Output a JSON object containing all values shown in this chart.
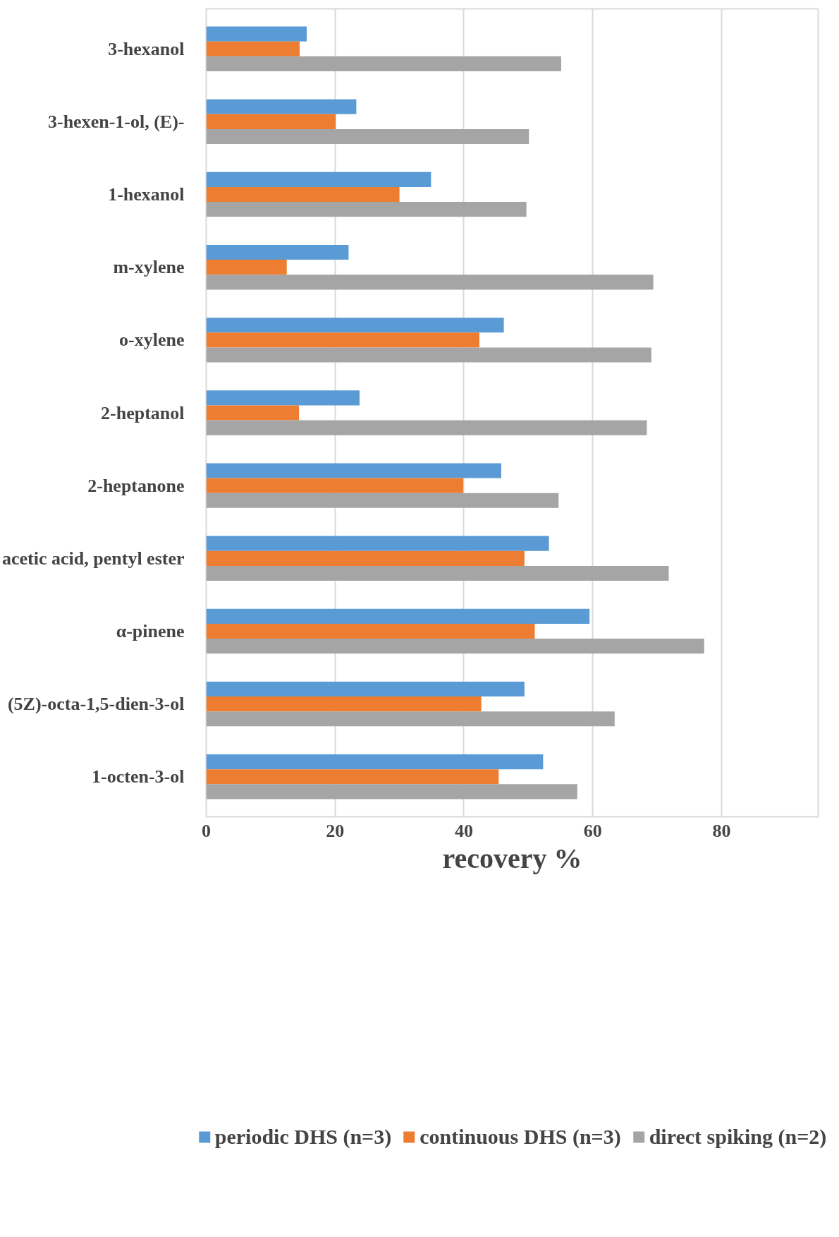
{
  "chart_data": {
    "type": "bar",
    "orientation": "horizontal",
    "xlabel": "recovery %",
    "categories": [
      "3-hexanol",
      "3-hexen-1-ol, (E)-",
      "1-hexanol",
      "m-xylene",
      "o-xylene",
      "2-heptanol",
      "2-heptanone",
      "acetic acid, pentyl ester",
      "α-pinene",
      "(5Z)-octa-1,5-dien-3-ol",
      "1-octen-3-ol"
    ],
    "series": [
      {
        "name": "periodic DHS (n=3)",
        "color": "#5b9bd5",
        "values": [
          15.6,
          23.3,
          34.9,
          22.1,
          46.2,
          23.8,
          45.8,
          53.2,
          59.5,
          49.4,
          52.3
        ]
      },
      {
        "name": "continuous DHS (n=3)",
        "color": "#ed7d31",
        "values": [
          14.5,
          20.1,
          30.0,
          12.5,
          42.4,
          14.4,
          39.9,
          49.4,
          51.0,
          42.7,
          45.4
        ]
      },
      {
        "name": "direct spiking (n=2)",
        "color": "#a5a5a5",
        "values": [
          55.1,
          50.1,
          49.7,
          69.4,
          69.1,
          68.4,
          54.7,
          71.8,
          77.3,
          63.4,
          57.6
        ]
      }
    ],
    "xlim": [
      0,
      95
    ],
    "xticks": [
      0,
      20,
      40,
      60,
      80
    ],
    "grid": "x",
    "legend": "bottom"
  }
}
